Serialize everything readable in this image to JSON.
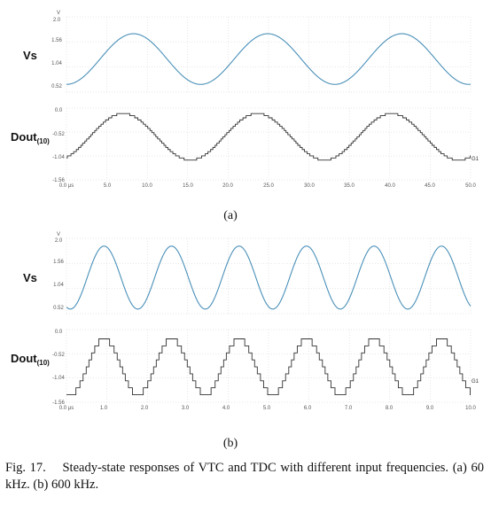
{
  "caption": "Fig. 17.    Steady-state responses of VTC and TDC with different input frequencies. (a) 60 kHz. (b) 600 kHz.",
  "colors": {
    "vs": "#4a90b8",
    "dout": "#333333",
    "grid": "#cfcfcf"
  },
  "chart_data": [
    {
      "type": "line",
      "panel_label": "(a)",
      "x_ticks": [
        "0.0 μs",
        "5.0",
        "10.0",
        "15.0",
        "20.0",
        "25.0",
        "30.0",
        "35.0",
        "40.0",
        "45.0",
        "50.0"
      ],
      "xlim": [
        0,
        50
      ],
      "input_frequency_khz": 60,
      "top": {
        "label": "Vs",
        "unit": "V",
        "y_ticks": [
          "2.0",
          "1.56",
          "1.04",
          "0.52"
        ],
        "ylim": [
          0.35,
          2.0
        ],
        "wave": {
          "min": 0.52,
          "max": 1.63,
          "peaks_x": [
            8.3,
            24.9,
            41.5
          ]
        }
      },
      "bottom": {
        "label": "Dout",
        "label_sub": "(10)",
        "y_ticks": [
          "0.0",
          "-0.52",
          "-1.04",
          "-1.56"
        ],
        "ylim": [
          -1.56,
          0.0
        ],
        "wave": {
          "min": -1.13,
          "max": -0.12,
          "peaks_x": [
            7.0,
            23.6,
            40.2
          ],
          "levels": 22
        },
        "marker": "G1"
      }
    },
    {
      "type": "line",
      "panel_label": "(b)",
      "x_ticks": [
        "0.0 μs",
        "1.0",
        "2.0",
        "3.0",
        "4.0",
        "5.0",
        "6.0",
        "7.0",
        "8.0",
        "9.0",
        "10.0"
      ],
      "xlim": [
        0,
        10
      ],
      "input_frequency_khz": 600,
      "top": {
        "label": "Vs",
        "unit": "V",
        "y_ticks": [
          "2.0",
          "1.56",
          "1.04",
          "0.52"
        ],
        "ylim": [
          0.35,
          2.0
        ],
        "wave": {
          "min": 0.45,
          "max": 1.83,
          "peaks_x": [
            0.93,
            2.6,
            4.27,
            5.93,
            7.6,
            9.27
          ]
        }
      },
      "bottom": {
        "label": "Dout",
        "label_sub": "(10)",
        "y_ticks": [
          "0.0",
          "-0.52",
          "-1.04",
          "-1.56"
        ],
        "ylim": [
          -1.56,
          0.0
        ],
        "wave": {
          "min": -1.4,
          "max": -0.2,
          "peaks_x": [
            0.93,
            2.6,
            4.27,
            5.93,
            7.6,
            9.27
          ],
          "levels": 8
        },
        "marker": "G1"
      }
    }
  ]
}
